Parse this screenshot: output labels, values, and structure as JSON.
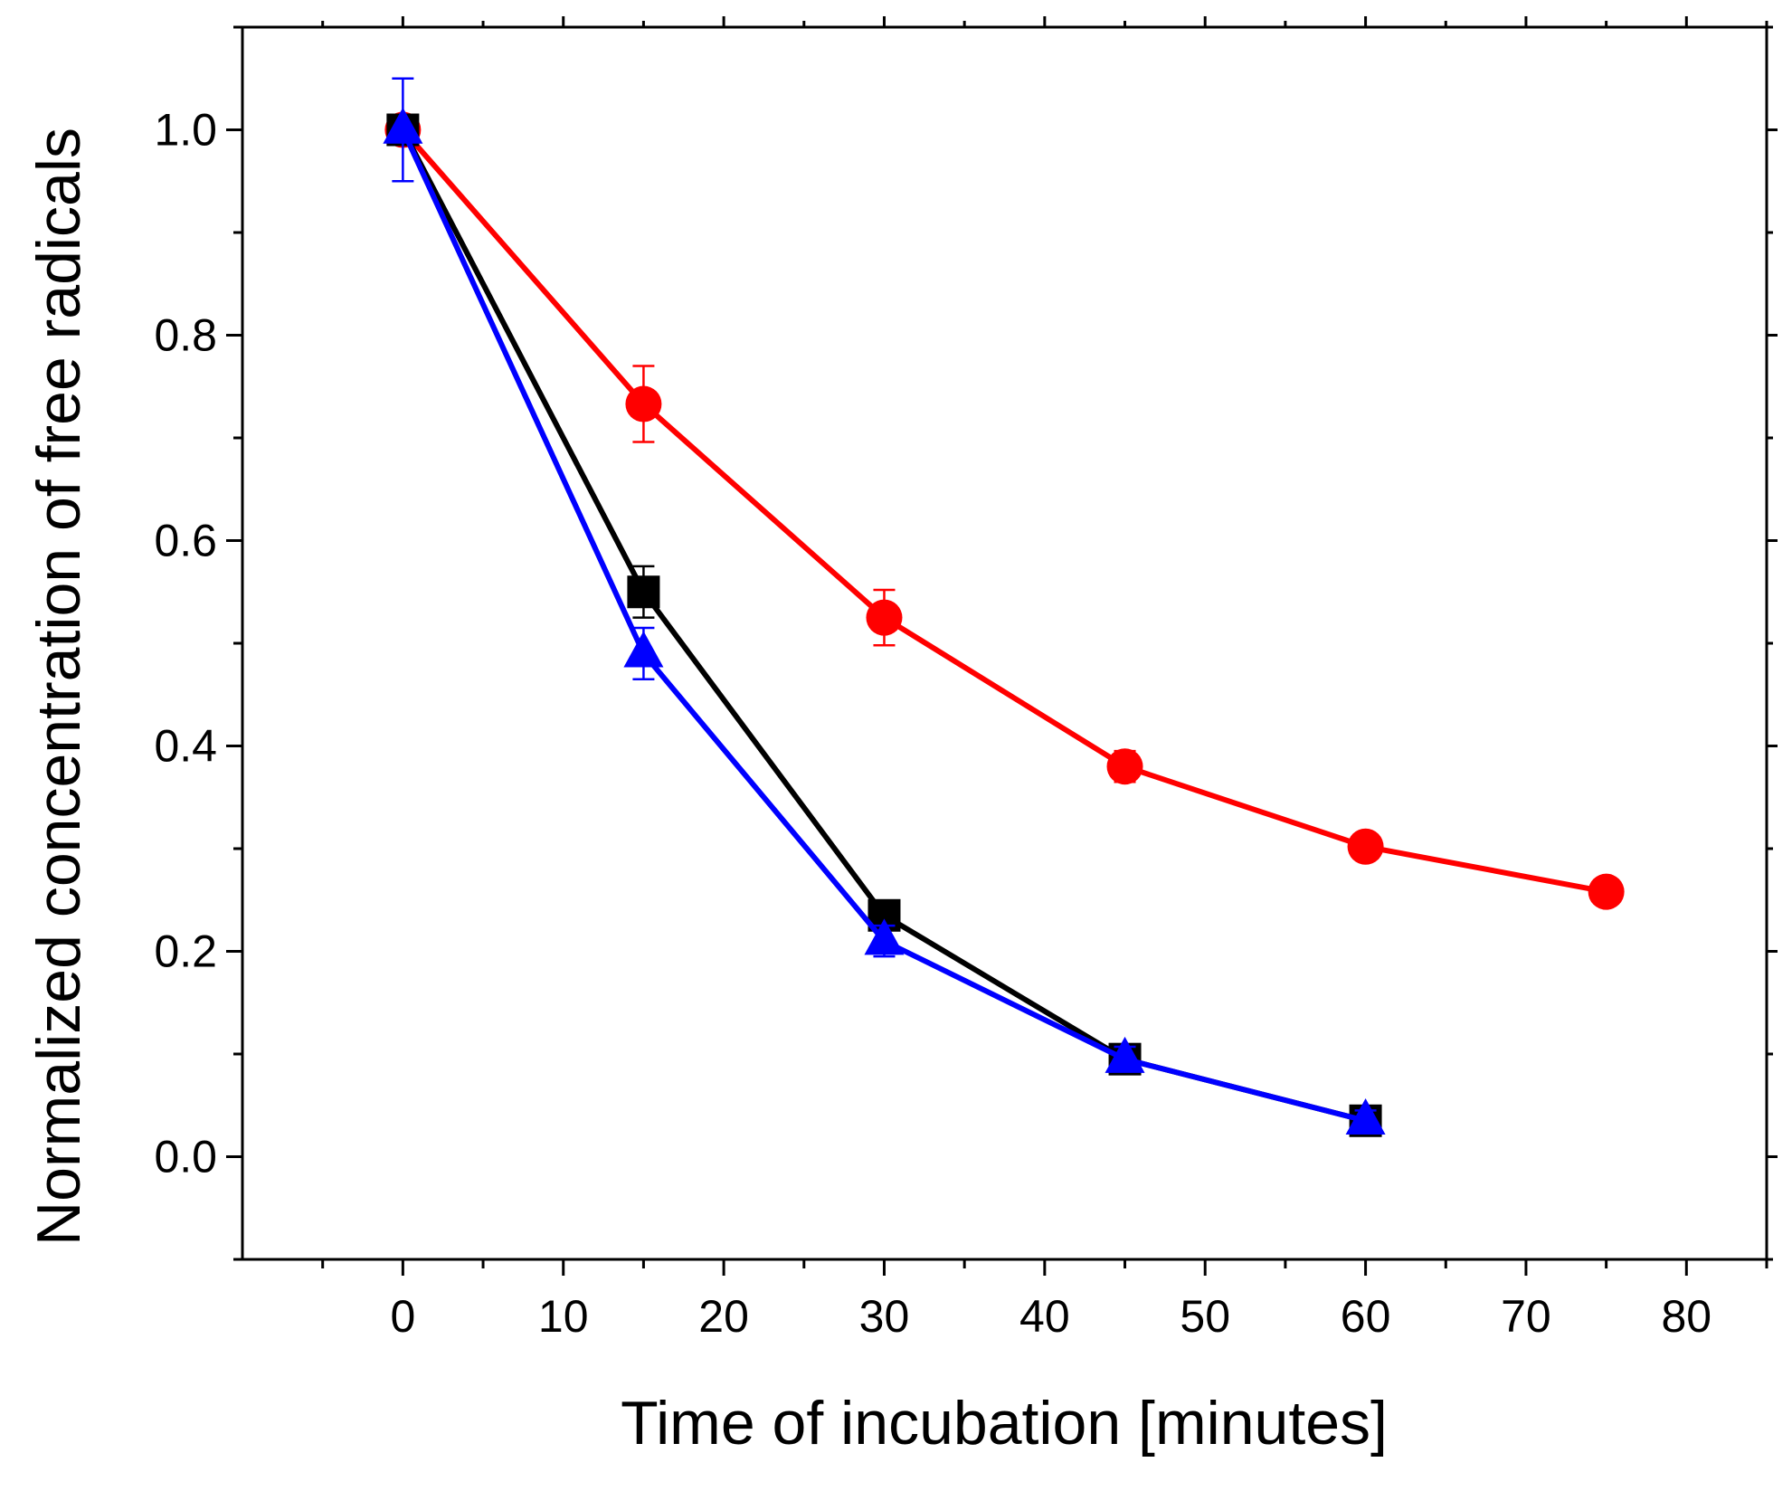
{
  "chart_data": {
    "type": "line",
    "title": "",
    "xlabel": "Time of incubation [minutes]",
    "ylabel": "Normalized concentration of free radicals",
    "xlim": [
      -10,
      85
    ],
    "ylim": [
      -0.1,
      1.1
    ],
    "xticks": [
      0,
      10,
      20,
      30,
      40,
      50,
      60,
      70,
      80
    ],
    "xtick_labels": [
      "0",
      "10",
      "20",
      "30",
      "40",
      "50",
      "60",
      "70",
      "80"
    ],
    "yticks": [
      0.0,
      0.2,
      0.4,
      0.6,
      0.8,
      1.0
    ],
    "ytick_labels": [
      "0.0",
      "0.2",
      "0.4",
      "0.6",
      "0.8",
      "1.0"
    ],
    "grid": false,
    "legend": "none",
    "series": [
      {
        "name": "black squares",
        "color": "#000000",
        "marker": "square",
        "x": [
          0,
          15,
          30,
          45,
          60
        ],
        "y": [
          1.0,
          0.55,
          0.235,
          0.095,
          0.035
        ],
        "err": [
          0.0,
          0.025,
          0.01,
          0.012,
          0.008
        ]
      },
      {
        "name": "red circles",
        "color": "#ff0000",
        "marker": "circle",
        "x": [
          0,
          15,
          30,
          45,
          60,
          75
        ],
        "y": [
          1.0,
          0.733,
          0.525,
          0.38,
          0.302,
          0.258
        ],
        "err": [
          0.0,
          0.037,
          0.027,
          0.015,
          0.01,
          0.008
        ]
      },
      {
        "name": "blue triangles",
        "color": "#0000ff",
        "marker": "triangle",
        "x": [
          0,
          15,
          30,
          45,
          60
        ],
        "y": [
          1.0,
          0.49,
          0.21,
          0.095,
          0.035
        ],
        "err": [
          0.05,
          0.025,
          0.015,
          0.012,
          0.01
        ]
      }
    ]
  }
}
